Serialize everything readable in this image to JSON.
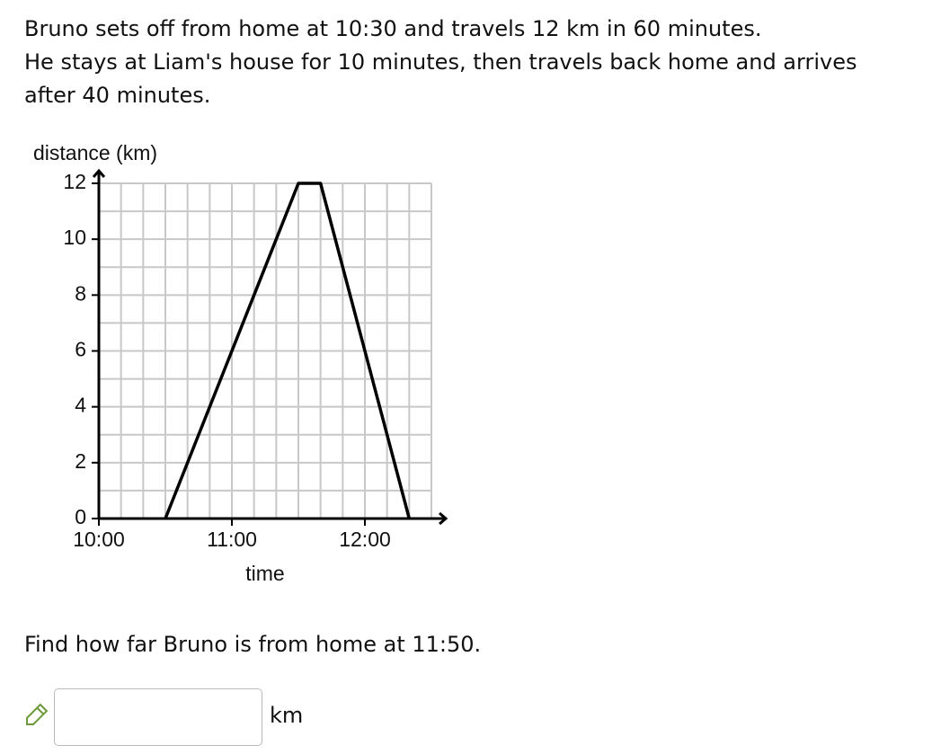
{
  "question": {
    "lines": [
      "Bruno sets off from home at 10:30 and travels 12 km in 60 minutes.",
      "He stays at Liam's house for 10 minutes, then travels back home and arrives",
      "after 40 minutes."
    ]
  },
  "chart_data": {
    "type": "line",
    "y_label": "distance (km)",
    "x_label": "time",
    "x": [
      630,
      690,
      700,
      740
    ],
    "values": [
      0,
      12,
      12,
      0
    ],
    "color": "#000000",
    "xlim": [
      600,
      750
    ],
    "ylim": [
      0,
      12
    ],
    "xticks": [
      {
        "value": 600,
        "label": "10:00"
      },
      {
        "value": 660,
        "label": "11:00"
      },
      {
        "value": 720,
        "label": "12:00"
      }
    ],
    "yticks": [
      0,
      2,
      4,
      6,
      8,
      10,
      12
    ],
    "grid": true
  },
  "prompt": "Find how far Bruno is from home at 11:50.",
  "answer": {
    "unit": "km"
  }
}
